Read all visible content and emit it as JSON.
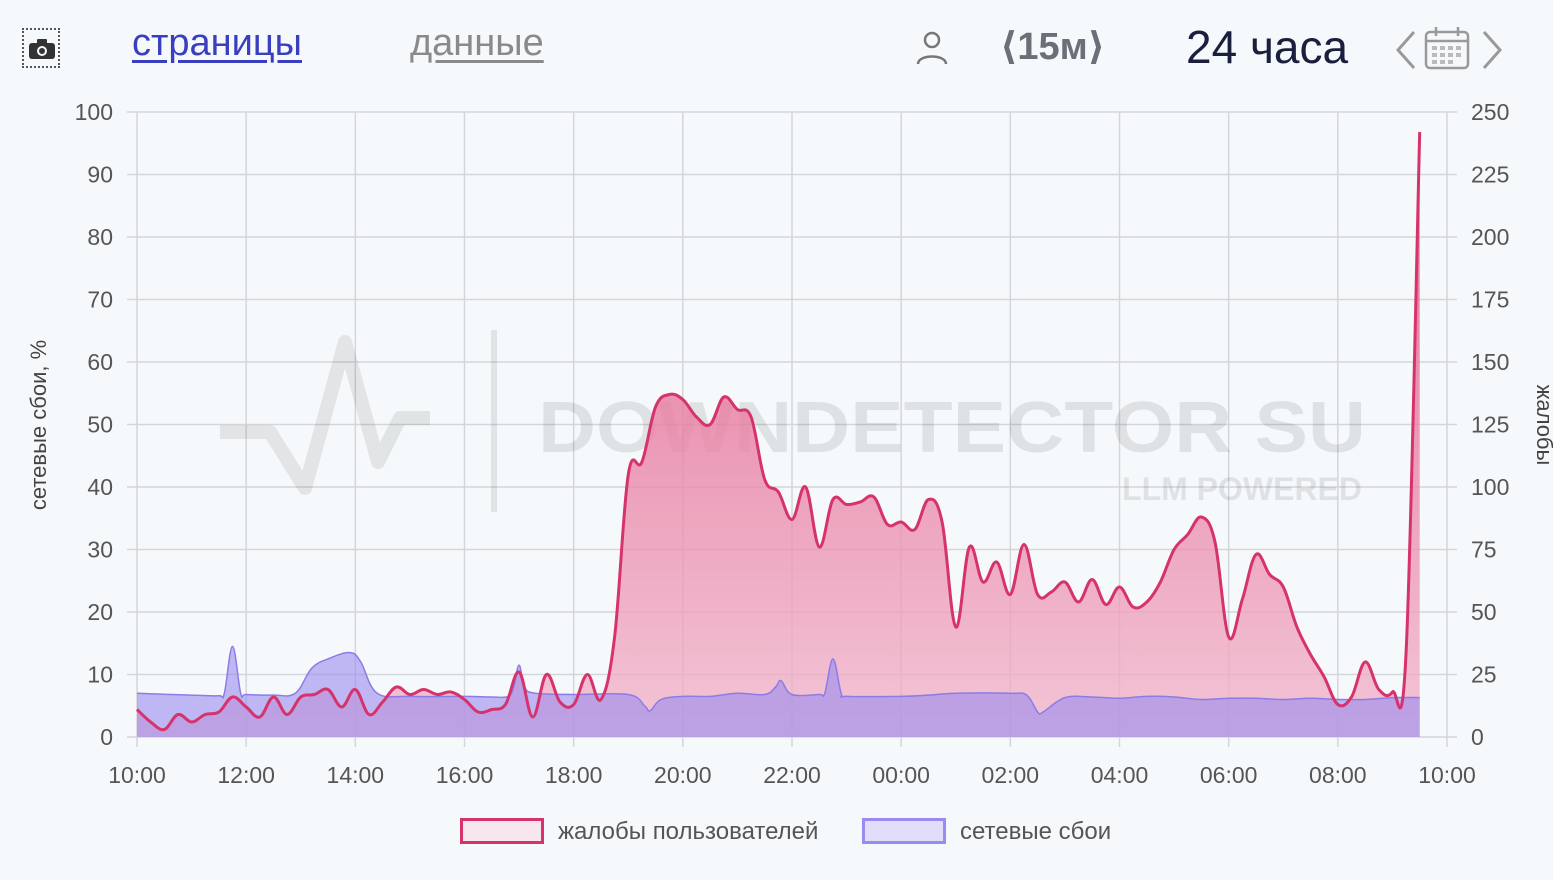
{
  "toolbar": {
    "pages_label": "страницы",
    "data_label": "данные",
    "interval_label": "⟨15м⟩",
    "range_label": "24 часа",
    "icons": [
      "camera-icon",
      "user-icon",
      "chevron-left-icon",
      "calendar-icon",
      "chevron-right-icon"
    ]
  },
  "watermark": {
    "brand": "DOWNDETECTOR SU",
    "tagline": "LLM POWERED"
  },
  "colors": {
    "complaints": "#d6336c",
    "network": "#9a8bf0",
    "grid": "#d3d6da",
    "text": "#555555"
  },
  "chart_data": {
    "type": "area",
    "x_ticks": [
      "10:00",
      "12:00",
      "14:00",
      "16:00",
      "18:00",
      "20:00",
      "22:00",
      "00:00",
      "02:00",
      "04:00",
      "06:00",
      "08:00",
      "10:00"
    ],
    "y_left": {
      "label": "сетевые сбои, %",
      "range": [
        0,
        100
      ],
      "ticks": [
        0,
        10,
        20,
        30,
        40,
        50,
        60,
        70,
        80,
        90,
        100
      ]
    },
    "y_right": {
      "label": "жалобы",
      "range": [
        0,
        250
      ],
      "ticks": [
        0,
        25,
        50,
        75,
        100,
        125,
        150,
        175,
        200,
        225,
        250
      ]
    },
    "grid": true,
    "legend_position": "bottom",
    "x_unit": "hours since 10:00",
    "series": [
      {
        "name": "жалобы пользователей",
        "axis": "right",
        "points": [
          [
            0,
            11
          ],
          [
            0.25,
            6
          ],
          [
            0.5,
            3
          ],
          [
            0.75,
            9
          ],
          [
            1,
            6
          ],
          [
            1.25,
            9
          ],
          [
            1.5,
            10
          ],
          [
            1.75,
            16
          ],
          [
            2,
            12
          ],
          [
            2.25,
            8
          ],
          [
            2.5,
            16
          ],
          [
            2.75,
            9
          ],
          [
            3,
            16
          ],
          [
            3.25,
            17
          ],
          [
            3.5,
            19
          ],
          [
            3.75,
            12
          ],
          [
            4,
            19
          ],
          [
            4.25,
            9
          ],
          [
            4.5,
            14
          ],
          [
            4.75,
            20
          ],
          [
            5,
            17
          ],
          [
            5.25,
            19
          ],
          [
            5.5,
            17
          ],
          [
            5.75,
            18
          ],
          [
            6,
            15
          ],
          [
            6.25,
            10
          ],
          [
            6.5,
            11
          ],
          [
            6.75,
            13
          ],
          [
            7,
            26
          ],
          [
            7.25,
            8
          ],
          [
            7.5,
            25
          ],
          [
            7.75,
            14
          ],
          [
            8,
            13
          ],
          [
            8.25,
            25
          ],
          [
            8.5,
            15
          ],
          [
            8.75,
            40
          ],
          [
            9,
            105
          ],
          [
            9.25,
            110
          ],
          [
            9.5,
            132
          ],
          [
            9.75,
            137
          ],
          [
            10,
            135
          ],
          [
            10.25,
            128
          ],
          [
            10.5,
            125
          ],
          [
            10.75,
            136
          ],
          [
            11,
            131
          ],
          [
            11.25,
            128
          ],
          [
            11.5,
            103
          ],
          [
            11.75,
            98
          ],
          [
            12,
            87
          ],
          [
            12.25,
            100
          ],
          [
            12.5,
            76
          ],
          [
            12.75,
            95
          ],
          [
            13,
            93
          ],
          [
            13.25,
            94
          ],
          [
            13.5,
            96
          ],
          [
            13.75,
            85
          ],
          [
            14,
            86
          ],
          [
            14.25,
            83
          ],
          [
            14.5,
            95
          ],
          [
            14.75,
            86
          ],
          [
            15,
            44
          ],
          [
            15.25,
            76
          ],
          [
            15.5,
            62
          ],
          [
            15.75,
            70
          ],
          [
            16,
            57
          ],
          [
            16.25,
            77
          ],
          [
            16.5,
            57
          ],
          [
            16.75,
            58
          ],
          [
            17,
            62
          ],
          [
            17.25,
            54
          ],
          [
            17.5,
            63
          ],
          [
            17.75,
            53
          ],
          [
            18,
            60
          ],
          [
            18.25,
            52
          ],
          [
            18.5,
            54
          ],
          [
            18.75,
            62
          ],
          [
            19,
            75
          ],
          [
            19.25,
            81
          ],
          [
            19.5,
            88
          ],
          [
            19.75,
            78
          ],
          [
            20,
            40
          ],
          [
            20.25,
            55
          ],
          [
            20.5,
            73
          ],
          [
            20.75,
            65
          ],
          [
            21,
            60
          ],
          [
            21.25,
            44
          ],
          [
            21.5,
            33
          ],
          [
            21.75,
            24
          ],
          [
            22,
            13
          ],
          [
            22.25,
            16
          ],
          [
            22.5,
            30
          ],
          [
            22.75,
            19
          ],
          [
            23,
            18
          ],
          [
            23.25,
            34
          ],
          [
            23.5,
            242
          ]
        ]
      },
      {
        "name": "сетевые сбои",
        "axis": "left",
        "points": [
          [
            0,
            7
          ],
          [
            1,
            6.7
          ],
          [
            1.5,
            6.6
          ],
          [
            1.6,
            7
          ],
          [
            1.75,
            14.5
          ],
          [
            1.9,
            7
          ],
          [
            2,
            6.8
          ],
          [
            2.5,
            6.7
          ],
          [
            2.9,
            7
          ],
          [
            3.2,
            11
          ],
          [
            3.5,
            12.5
          ],
          [
            3.9,
            13.5
          ],
          [
            4.1,
            12
          ],
          [
            4.4,
            7
          ],
          [
            5,
            6.5
          ],
          [
            6,
            6.5
          ],
          [
            6.5,
            6.4
          ],
          [
            6.8,
            6.5
          ],
          [
            6.9,
            8
          ],
          [
            7.0,
            11.5
          ],
          [
            7.1,
            8
          ],
          [
            7.3,
            7
          ],
          [
            8,
            6.8
          ],
          [
            9,
            6.8
          ],
          [
            9.3,
            5
          ],
          [
            9.4,
            4.2
          ],
          [
            9.6,
            6
          ],
          [
            10,
            6.5
          ],
          [
            10.5,
            6.5
          ],
          [
            11,
            7
          ],
          [
            11.5,
            6.8
          ],
          [
            11.7,
            8
          ],
          [
            11.8,
            9
          ],
          [
            12,
            6.8
          ],
          [
            12.5,
            6.8
          ],
          [
            12.6,
            7
          ],
          [
            12.75,
            12.5
          ],
          [
            12.9,
            7
          ],
          [
            13,
            6.5
          ],
          [
            14,
            6.5
          ],
          [
            14.5,
            6.7
          ],
          [
            15,
            7
          ],
          [
            16,
            7
          ],
          [
            16.3,
            6.7
          ],
          [
            16.5,
            4
          ],
          [
            16.6,
            4
          ],
          [
            17,
            6.3
          ],
          [
            17.5,
            6.4
          ],
          [
            18,
            6.2
          ],
          [
            18.5,
            6.5
          ],
          [
            19,
            6.4
          ],
          [
            19.5,
            6
          ],
          [
            20,
            6.2
          ],
          [
            20.5,
            6.2
          ],
          [
            21,
            6
          ],
          [
            21.5,
            6.2
          ],
          [
            22,
            6
          ],
          [
            22.5,
            6
          ],
          [
            23,
            6.3
          ],
          [
            23.5,
            6.3
          ]
        ]
      }
    ]
  },
  "legend": {
    "complaints_label": "жалобы пользователей",
    "network_label": "сетевые сбои"
  }
}
